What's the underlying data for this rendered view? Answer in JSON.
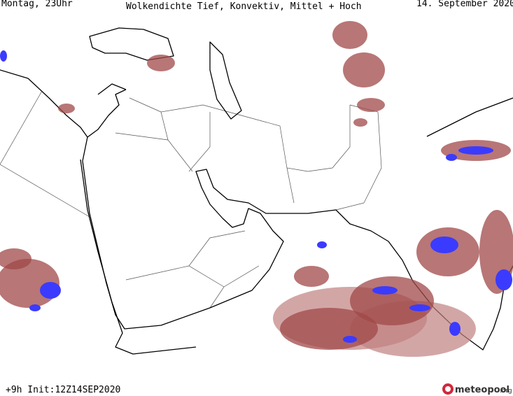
{
  "header": {
    "left": "Montag, 23Uhr",
    "title": "Wolkendichte  Tief, Konvektiv, Mittel + Hoch",
    "right": "14. September 2020"
  },
  "footer": {
    "left": "+9h  Init:12Z14SEP2020",
    "logo": "meteopool",
    "logo_suffix": ".org"
  }
}
